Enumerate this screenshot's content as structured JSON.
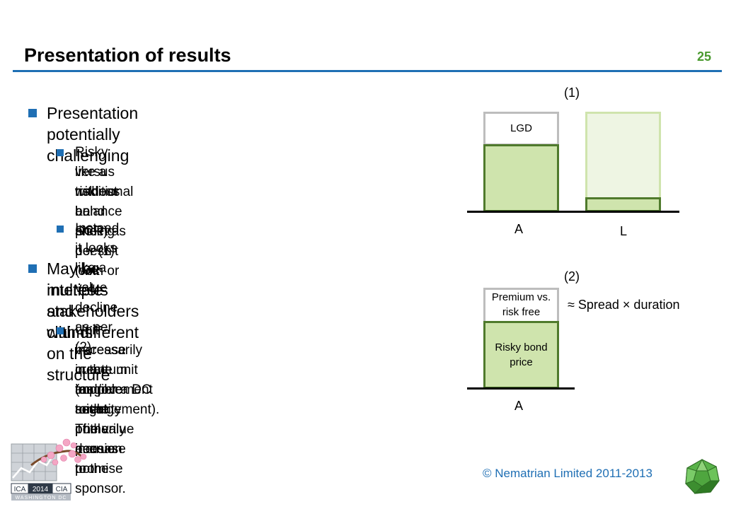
{
  "slide": {
    "title": "Presentation of results",
    "number": "25"
  },
  "content": {
    "bullet1": "Presentation potentially challenging",
    "bullet1_sub1_line1": "Risky versus riskless bond pricing doesn’t look",
    "bullet1_sub1_line2": "like a traditional balance sheet as per (1) (with or",
    "bullet1_sub1_line3": "without an SCR)",
    "bullet1_sub2": "Instead it looks like a value decline as per (2)",
    "bullet2_line1": "May be multiple stakeholders with different",
    "bullet2_line2": "interests and claims on the structure",
    "bullet2_sub1_line1": "Unit increase in the tangible asset pool does not",
    "bullet2_sub1_line2": "necessarily create unit improvement to the",
    "bullet2_sub1_line3": "quantum and/or security of the pension promise",
    "bullet2_sub1_line4": "(as per a DC arrangement). The value increase",
    "bullet2_sub1_line5": "might primarily accrue to the sponsor."
  },
  "diagram1": {
    "label": "(1)",
    "lgd": "LGD",
    "axis_a": "A",
    "axis_l": "L"
  },
  "diagram2": {
    "label": "(2)",
    "premium_line1": "Premium vs.",
    "premium_line2": "risk free",
    "price_line1": "Risky bond",
    "price_line2": "price",
    "axis_a": "A",
    "annotation": "≈ Spread × duration"
  },
  "footer": {
    "copyright": "© Nematrian Limited 2011-2013",
    "logo_text": "ICA 2014 CIA",
    "logo_sub": "WASHINGTON DC"
  },
  "colors": {
    "accent_blue": "#1f6fb4",
    "accent_green": "#4a9a2f",
    "bar_fill": "#cfe4ad",
    "bar_border": "#4f7a2c"
  }
}
